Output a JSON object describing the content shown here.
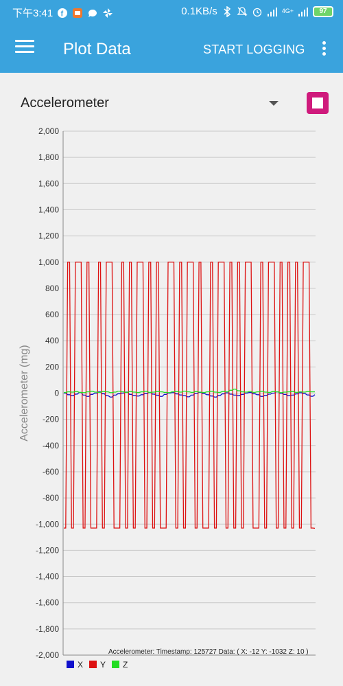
{
  "status_bar": {
    "time": "下午3:41",
    "net_speed": "0.1KB/s",
    "net_type": "4G+",
    "battery": "97",
    "icons": [
      "facebook-icon",
      "app-icon",
      "chat-icon",
      "pinwheel-icon",
      "bluetooth-icon",
      "alarm-mute-icon",
      "alarm-icon",
      "signal-icon",
      "signal-4g-icon",
      "battery-icon"
    ]
  },
  "toolbar": {
    "title": "Plot Data",
    "start_logging": "START LOGGING",
    "menu_icon": "hamburger-icon",
    "overflow_icon": "more-vert-icon"
  },
  "sensor": {
    "selected": "Accelerometer",
    "stop_button_color": "#cf1a7c"
  },
  "chart_data": {
    "type": "line",
    "ylabel": "Accelerometer (mg)",
    "ylim": [
      -2000,
      2000
    ],
    "yticks": [
      "2,000",
      "1,800",
      "1,600",
      "1,400",
      "1,200",
      "1,000",
      "800",
      "600",
      "400",
      "200",
      "0",
      "-200",
      "-400",
      "-600",
      "-800",
      "-1,000",
      "-1,200",
      "-1,400",
      "-1,600",
      "-1,800",
      "-2,000"
    ],
    "grid": true,
    "legend_position": "bottom-left",
    "info_text": "Accelerometer:  Timestamp: 125727  Data: ( X:  -12 Y: -1032 Z:   10 )",
    "series": [
      {
        "name": "X",
        "color": "#1010cc",
        "values": [
          0,
          -12,
          -20,
          -8,
          5,
          -15,
          -25,
          -10,
          0,
          10,
          -5,
          -20,
          -30,
          -15,
          -5,
          0,
          8,
          -10,
          -18,
          -22,
          -12,
          -3,
          5,
          -8,
          -16,
          -25,
          -10,
          0,
          4,
          -6,
          -14,
          -20,
          -28,
          -15,
          -2,
          6,
          -4,
          -12,
          -22,
          -30,
          -18,
          -6,
          2,
          -8,
          -15,
          -20,
          -10,
          0,
          5,
          -5,
          -12,
          -25,
          -18,
          -8,
          0,
          10,
          -2,
          -10,
          -20,
          -15,
          -6,
          3,
          -4,
          -14,
          -24,
          -12
        ]
      },
      {
        "name": "Y",
        "color": "#dd1111",
        "values": [
          -1030,
          1000,
          -1030,
          1000,
          1000,
          -1030,
          1000,
          -1030,
          -1030,
          1000,
          -1030,
          1000,
          1000,
          -1030,
          -1030,
          1000,
          -1030,
          1000,
          -1030,
          1000,
          1000,
          -1030,
          1000,
          -1030,
          1000,
          -1030,
          -1030,
          1000,
          1000,
          -1030,
          1000,
          -1030,
          1000,
          1000,
          -1030,
          1000,
          -1030,
          -1030,
          1000,
          -1030,
          1000,
          1000,
          -1030,
          1000,
          -1030,
          1000,
          -1030,
          1000,
          1000,
          -1030,
          -1030,
          1000,
          -1030,
          1000,
          1000,
          -1030,
          1000,
          -1030,
          1000,
          -1030,
          1000,
          -1030,
          1000,
          1000,
          -1030,
          -1032
        ]
      },
      {
        "name": "Z",
        "color": "#22dd22",
        "values": [
          5,
          10,
          8,
          12,
          6,
          4,
          10,
          14,
          8,
          6,
          12,
          10,
          4,
          8,
          15,
          10,
          6,
          12,
          8,
          5,
          10,
          14,
          6,
          8,
          12,
          10,
          6,
          4,
          10,
          12,
          8,
          15,
          10,
          6,
          12,
          8,
          5,
          10,
          14,
          8,
          6,
          12,
          10,
          22,
          30,
          18,
          10,
          8,
          12,
          6,
          10,
          14,
          8,
          6,
          12,
          10,
          4,
          8,
          10,
          12,
          6,
          10,
          8,
          12,
          10,
          10
        ]
      }
    ]
  }
}
